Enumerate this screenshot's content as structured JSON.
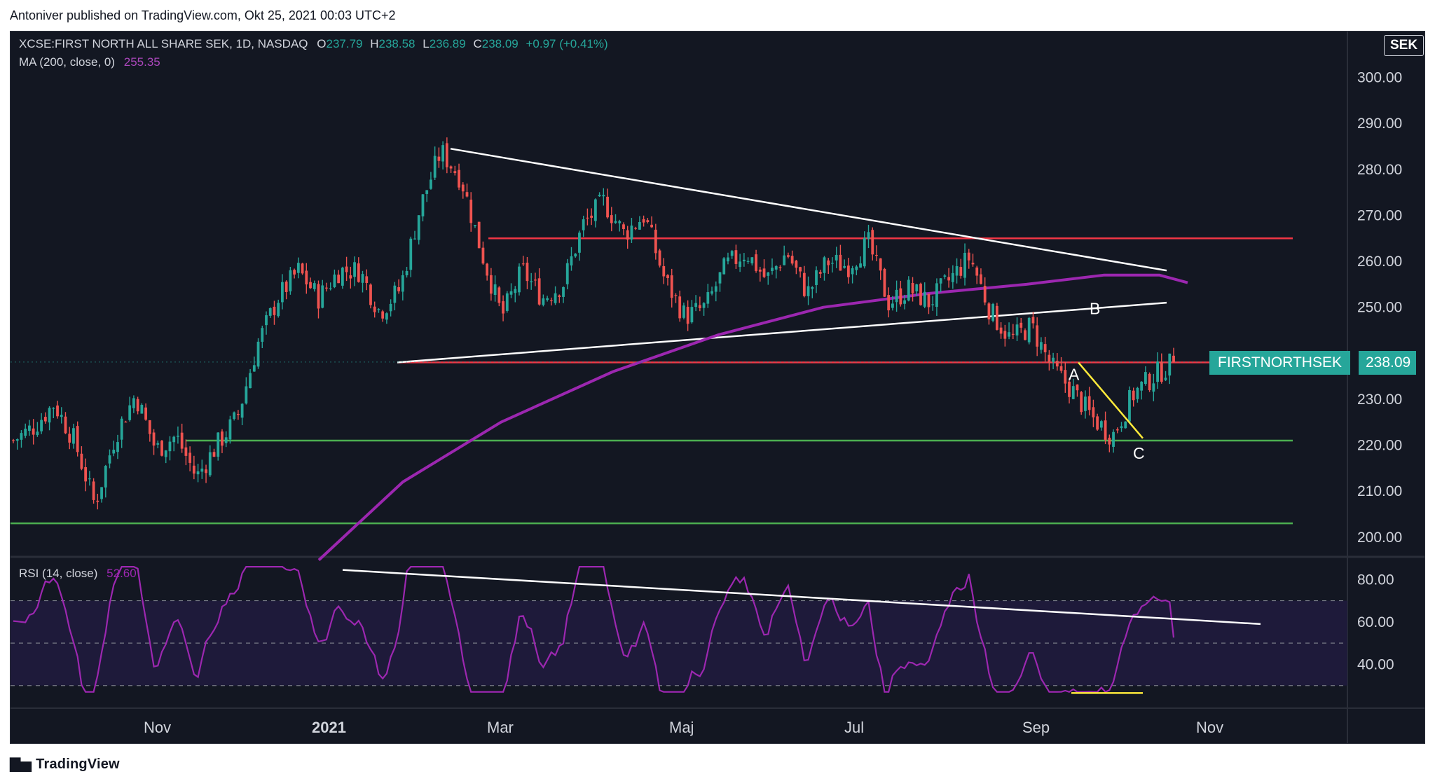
{
  "publish_line": "Antoniver published on TradingView.com, Okt 25, 2021 00:03 UTC+2",
  "legend": {
    "symbol": "XCSE:FIRST NORTH ALL SHARE SEK, 1D, NASDAQ",
    "o_label": "O",
    "o_value": "237.79",
    "h_label": "H",
    "h_value": "238.58",
    "l_label": "L",
    "l_value": "236.89",
    "c_label": "C",
    "c_value": "238.09",
    "change": "+0.97 (+0.41%)",
    "ma_label": "MA (200, close, 0)",
    "ma_value": "255.35",
    "rsi_label": "RSI (14, close)",
    "rsi_value": "52.60"
  },
  "currency_button": "SEK",
  "price_badge": {
    "name": "FIRSTNORTHSEK",
    "value": "238.09"
  },
  "footer_logo": "TradingView",
  "colors": {
    "background": "#131722",
    "up": "#26a69a",
    "down": "#ef5350",
    "ma": "#9c27b0",
    "rsi_line": "#9c27b0",
    "rsi_band": "#1e1a3a",
    "trendline": "#ffffff",
    "resistance": "#f23645",
    "support": "#4caf50",
    "abc_line": "#ffeb3b"
  },
  "chart_data": [
    {
      "type": "candlestick",
      "symbol": "XCSE:FIRST NORTH ALL SHARE SEK",
      "interval": "1D",
      "date_range": [
        "2020-09-14",
        "2021-10-22"
      ],
      "x_ticks": [
        "Nov",
        "2021",
        "Mar",
        "Maj",
        "Jul",
        "Sep",
        "Nov"
      ],
      "y_ticks": [
        "200.00",
        "210.00",
        "220.00",
        "230.00",
        "250.00",
        "260.00",
        "270.00",
        "280.00",
        "290.00",
        "300.00"
      ],
      "ylim": [
        196,
        310
      ],
      "last_close": 238.09,
      "ma200_last": 255.35,
      "close_path": [
        [
          "2020-09-14",
          221
        ],
        [
          "2020-09-28",
          224
        ],
        [
          "2020-10-12",
          229
        ],
        [
          "2020-10-26",
          221
        ],
        [
          "2020-11-02",
          207
        ],
        [
          "2020-11-09",
          222
        ],
        [
          "2020-11-16",
          231
        ],
        [
          "2020-11-23",
          219
        ],
        [
          "2020-12-07",
          222
        ],
        [
          "2020-12-14",
          213
        ],
        [
          "2020-12-28",
          220
        ],
        [
          "2021-01-11",
          226
        ],
        [
          "2021-01-25",
          242
        ],
        [
          "2021-02-08",
          252
        ],
        [
          "2021-02-22",
          258
        ],
        [
          "2021-03-01",
          252
        ],
        [
          "2021-03-08",
          258
        ],
        [
          "2021-03-15",
          258
        ],
        [
          "2021-03-18",
          249
        ],
        [
          "2021-03-22",
          254
        ],
        [
          "2021-03-26",
          272
        ],
        [
          "2021-04-01",
          284
        ],
        [
          "2021-04-05",
          278
        ],
        [
          "2021-04-12",
          262
        ],
        [
          "2021-04-19",
          248
        ],
        [
          "2021-04-26",
          258
        ],
        [
          "2021-05-10",
          252
        ],
        [
          "2021-05-24",
          255
        ],
        [
          "2021-06-07",
          268
        ],
        [
          "2021-06-14",
          273
        ],
        [
          "2021-06-21",
          266
        ],
        [
          "2021-07-05",
          270
        ],
        [
          "2021-07-12",
          256
        ],
        [
          "2021-07-19",
          248
        ],
        [
          "2021-07-26",
          250
        ],
        [
          "2021-08-09",
          259
        ],
        [
          "2021-08-23",
          262
        ],
        [
          "2021-09-06",
          256
        ],
        [
          "2021-09-13",
          262
        ],
        [
          "2021-09-20",
          253
        ],
        [
          "2021-10-04",
          260
        ],
        [
          "2021-10-18",
          259
        ],
        [
          "2021-11-01",
          264
        ],
        [
          "2021-11-15",
          251
        ],
        [
          "2021-11-29",
          254
        ],
        [
          "2021-12-13",
          251
        ],
        [
          "2022-01-10",
          256
        ],
        [
          "2022-01-24",
          261
        ],
        [
          "2022-02-07",
          249
        ],
        [
          "2022-02-14",
          243
        ],
        [
          "2022-02-21",
          246
        ],
        [
          "2022-03-07",
          237
        ],
        [
          "2022-03-21",
          232
        ],
        [
          "2022-03-28",
          226
        ],
        [
          "2022-04-04",
          222
        ],
        [
          "2022-04-11",
          231
        ],
        [
          "2022-04-18",
          235
        ],
        [
          "2022-04-25",
          238.09
        ]
      ]
    },
    {
      "type": "line",
      "name": "MA (200, close, 0)",
      "series_path": [
        [
          "2021-03-10",
          195
        ],
        [
          "2021-04-01",
          212
        ],
        [
          "2021-05-01",
          225
        ],
        [
          "2021-06-01",
          236
        ],
        [
          "2021-07-01",
          244
        ],
        [
          "2021-08-01",
          250
        ],
        [
          "2021-09-01",
          253
        ],
        [
          "2021-10-01",
          255
        ],
        [
          "2021-11-01",
          257
        ],
        [
          "2021-12-01",
          257
        ],
        [
          "2022-01-01",
          255.35
        ]
      ]
    },
    {
      "type": "line",
      "name": "RSI (14, close)",
      "ylim": [
        20,
        90
      ],
      "y_ticks": [
        "40.00",
        "60.00",
        "80.00"
      ],
      "band": [
        30,
        70
      ],
      "midline": 50,
      "last_value": 52.6
    },
    {
      "type": "annotations",
      "labels": [
        "A",
        "B",
        "C"
      ],
      "resistance_levels": [
        265,
        238
      ],
      "support_levels": [
        221,
        203
      ]
    }
  ]
}
